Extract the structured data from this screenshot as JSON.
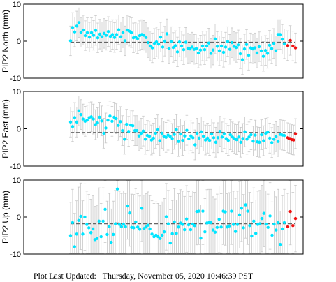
{
  "footer": {
    "label": "Plot Last Updated:",
    "timestamp": "Thursday, November 05, 2020 10:46:39 PST"
  },
  "colors": {
    "point": "#00e5ff",
    "recent_point": "#ee1111",
    "error_bar": "#c8c8c8",
    "mean_line": "#666666"
  },
  "chart_data": [
    {
      "type": "scatter",
      "ylabel": "PIP2 North (mm)",
      "ylim": [
        -10,
        10
      ],
      "yticks": [
        10,
        0,
        -10
      ],
      "mean": -0.3,
      "error": 4,
      "series": [
        {
          "values": [
            0.1,
            3.7,
            2.5,
            4.1,
            5.0,
            2.4,
            3.0,
            1.5,
            2.3,
            1.1,
            2.3,
            1.6,
            2.9,
            0.9,
            1.9,
            1.2,
            2.1,
            1.6,
            2.6,
            1.3,
            1.8,
            1.0,
            1.8,
            3.1,
            1.2,
            2.3,
            0.1,
            3.0,
            2.7,
            2.3,
            0.9,
            1.1,
            0.7,
            1.5,
            1.8,
            1.6,
            1.0,
            -0.4,
            -1.3,
            -1.8,
            -0.6,
            -0.2,
            -0.8,
            1.1,
            -1.6,
            0.0,
            2.0,
            -2.0,
            -0.1,
            -1.7,
            -1.2,
            -2.9,
            -0.2,
            -1.3,
            -2.3,
            -0.3,
            -1.9,
            -2.1,
            -1.6,
            -2.2,
            -2.0,
            -3.2,
            -2.4,
            -1.3,
            -2.3,
            -1.3,
            -0.5,
            -3.3,
            -2.4,
            0.6,
            -1.4,
            -2.6,
            -1.3,
            -3.0,
            -1.6,
            -0.1,
            -2.2,
            -0.4,
            -1.4,
            -1.7,
            -1.0,
            -3.4,
            -5.0,
            -2.1,
            -0.9,
            -3.8,
            -1.8,
            -2.1,
            -1.8,
            -3.2,
            -1.5,
            -2.6,
            -4.1,
            -2.5,
            -3.3,
            -1.1,
            -2.0,
            -0.6,
            -2.6,
            1.8,
            1.8,
            0.5,
            -0.7
          ]
        },
        {
          "name": "recent",
          "values": [
            -1.2,
            0.2,
            -1.3,
            -1.8
          ]
        }
      ]
    },
    {
      "type": "scatter",
      "ylabel": "PIP2 East (mm)",
      "ylim": [
        -10,
        10
      ],
      "yticks": [
        10,
        0,
        -10
      ],
      "mean": -1.0,
      "error": 4,
      "series": [
        {
          "values": [
            1.8,
            0.6,
            3.0,
            1.8,
            4.8,
            3.8,
            2.6,
            2.0,
            2.3,
            3.0,
            3.2,
            2.6,
            1.1,
            1.6,
            3.1,
            2.1,
            -1.2,
            0.2,
            2.3,
            3.4,
            2.0,
            3.1,
            2.7,
            0.9,
            1.9,
            -0.5,
            -2.8,
            1.2,
            -0.7,
            1.0,
            0.8,
            -0.5,
            -0.5,
            -1.9,
            -1.2,
            -0.6,
            -2.8,
            -1.8,
            -2.0,
            -3.0,
            -2.5,
            -1.2,
            -0.3,
            -3.2,
            -1.2,
            -2.0,
            -2.3,
            -1.7,
            -2.0,
            -2.6,
            -1.5,
            -0.2,
            -3.4,
            -1.4,
            -3.1,
            -1.9,
            -0.4,
            -2.7,
            -1.9,
            -2.4,
            -4.3,
            -1.2,
            -2.5,
            -0.8,
            -2.0,
            -3.0,
            -2.5,
            -3.1,
            -1.4,
            -2.4,
            -3.6,
            -2.4,
            -0.7,
            -2.2,
            -1.3,
            -2.6,
            -3.1,
            -1.6,
            -2.2,
            -2.6,
            -2.9,
            -2.2,
            -3.6,
            -2.6,
            -0.8,
            -2.8,
            -2.2,
            -1.6,
            -3.3,
            -1.7,
            -3.5,
            -3.6,
            -1.6,
            -3.2,
            -1.2,
            -0.9,
            -2.5,
            -3.7,
            -2.8,
            -2.1,
            -3.4,
            -1.5,
            -1.7,
            -1.8
          ]
        },
        {
          "name": "recent",
          "values": [
            -2.4,
            -2.6,
            -2.9,
            -3.0,
            -1.3
          ]
        }
      ]
    },
    {
      "type": "scatter",
      "ylabel": "PIP2 Up (mm)",
      "ylim": [
        -10,
        10
      ],
      "yticks": [
        10,
        0,
        -10
      ],
      "mean": -1.8,
      "error": 9,
      "series": [
        {
          "values": [
            -5.0,
            -1.5,
            -8.0,
            -4.6,
            -0.9,
            0.2,
            -4.6,
            0.0,
            -2.0,
            -2.9,
            -4.2,
            -3.2,
            -6.1,
            -5.8,
            -1.1,
            -5.3,
            -1.1,
            2.1,
            -4.7,
            -2.6,
            -6.8,
            -4.7,
            -1.8,
            7.6,
            -2.0,
            -2.6,
            -1.9,
            -2.6,
            3.0,
            1.1,
            -2.8,
            -2.9,
            -1.3,
            -2.7,
            -3.3,
            2.4,
            -3.1,
            -2.7,
            -2.2,
            -3.2,
            -4.6,
            -5.3,
            -4.9,
            -5.3,
            -5.8,
            -4.9,
            -4.0,
            0.1,
            -1.8,
            -7.0,
            -4.5,
            -1.3,
            -4.4,
            -2.7,
            -1.6,
            -2.0,
            -3.4,
            -0.5,
            -2.1,
            -3.4,
            -1.9,
            -2.3,
            1.5,
            1.6,
            -5.7,
            1.6,
            -4.0,
            -1.6,
            -1.5,
            -1.5,
            -3.5,
            -4.1,
            -2.8,
            -0.6,
            -2.7,
            1.6,
            1.4,
            -2.7,
            -2.4,
            1.6,
            -2.0,
            -3.9,
            -2.0,
            0.6,
            2.4,
            -2.9,
            3.3,
            1.6,
            -2.3,
            -5.1,
            -1.1,
            -4.4,
            -2.0,
            -1.8,
            -0.4,
            1.0,
            -1.9,
            -2.8,
            0.3,
            -4.9,
            -1.9,
            -3.5,
            -1.5,
            -7.4,
            -3.2,
            -1.5
          ]
        },
        {
          "name": "recent",
          "values": [
            -2.6,
            1.5,
            -2.3,
            -0.4
          ]
        }
      ]
    }
  ]
}
